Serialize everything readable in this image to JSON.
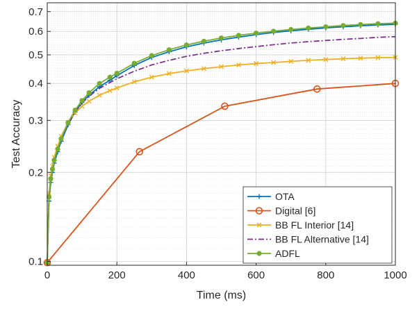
{
  "chart_data": {
    "type": "line",
    "xlabel": "Time (ms)",
    "ylabel": "Test Accuracy",
    "yscale": "log",
    "xlim": [
      0,
      1000
    ],
    "ylim": [
      0.097,
      0.75
    ],
    "xticks": [
      0,
      200,
      400,
      600,
      800,
      1000
    ],
    "yticks": [
      0.1,
      0.2,
      0.3,
      0.4,
      0.5,
      0.6,
      0.7
    ],
    "ytick_labels": [
      "0.1",
      "0.2",
      "0.3",
      "0.4",
      "0.5",
      "0.6",
      "0.7"
    ],
    "grid": true,
    "minor_grid": true,
    "legend_position": "bottom-right",
    "series": [
      {
        "name": "OTA",
        "color": "#0072BD",
        "dash": "solid",
        "marker": "plus",
        "x": [
          0,
          5,
          10,
          15,
          20,
          30,
          40,
          60,
          80,
          100,
          120,
          150,
          180,
          200,
          250,
          300,
          350,
          400,
          450,
          500,
          550,
          600,
          650,
          700,
          750,
          800,
          850,
          900,
          950,
          1000
        ],
        "y": [
          0.099,
          0.16,
          0.185,
          0.2,
          0.215,
          0.235,
          0.255,
          0.29,
          0.32,
          0.345,
          0.365,
          0.39,
          0.41,
          0.425,
          0.46,
          0.49,
          0.512,
          0.532,
          0.548,
          0.562,
          0.574,
          0.585,
          0.595,
          0.603,
          0.61,
          0.617,
          0.622,
          0.627,
          0.631,
          0.634
        ]
      },
      {
        "name": "Digital [6]",
        "color": "#D95319",
        "dash": "solid",
        "marker": "circle",
        "x": [
          0,
          265,
          510,
          775,
          1000
        ],
        "y": [
          0.099,
          0.235,
          0.335,
          0.383,
          0.4
        ]
      },
      {
        "name": "BB FL Interior [14]",
        "color": "#EDB120",
        "dash": "solid",
        "marker": "cross",
        "x": [
          0,
          5,
          10,
          15,
          20,
          30,
          40,
          60,
          80,
          100,
          120,
          150,
          180,
          200,
          250,
          300,
          350,
          400,
          450,
          500,
          550,
          600,
          650,
          700,
          750,
          800,
          850,
          900,
          950,
          1000
        ],
        "y": [
          0.099,
          0.17,
          0.195,
          0.21,
          0.225,
          0.245,
          0.265,
          0.295,
          0.318,
          0.335,
          0.348,
          0.365,
          0.378,
          0.386,
          0.405,
          0.42,
          0.432,
          0.441,
          0.449,
          0.456,
          0.462,
          0.467,
          0.471,
          0.475,
          0.479,
          0.482,
          0.485,
          0.487,
          0.489,
          0.49
        ]
      },
      {
        "name": "BB FL Alternative [14]",
        "color": "#7E2F8E",
        "dash": "dashdot",
        "marker": "none",
        "x": [
          0,
          5,
          10,
          15,
          20,
          30,
          40,
          60,
          80,
          100,
          120,
          150,
          180,
          200,
          250,
          300,
          350,
          400,
          450,
          500,
          550,
          600,
          650,
          700,
          750,
          800,
          850,
          900,
          950,
          1000
        ],
        "y": [
          0.099,
          0.165,
          0.19,
          0.205,
          0.22,
          0.24,
          0.26,
          0.292,
          0.32,
          0.343,
          0.362,
          0.385,
          0.403,
          0.415,
          0.44,
          0.462,
          0.479,
          0.494,
          0.506,
          0.516,
          0.525,
          0.533,
          0.541,
          0.548,
          0.554,
          0.559,
          0.564,
          0.568,
          0.573,
          0.576
        ]
      },
      {
        "name": "ADFL",
        "color": "#77AC30",
        "dash": "solid",
        "marker": "dot",
        "x": [
          0,
          5,
          10,
          15,
          20,
          30,
          40,
          60,
          80,
          100,
          120,
          150,
          180,
          200,
          250,
          300,
          350,
          400,
          450,
          500,
          550,
          600,
          650,
          700,
          750,
          800,
          850,
          900,
          950,
          1000
        ],
        "y": [
          0.099,
          0.165,
          0.19,
          0.205,
          0.22,
          0.24,
          0.26,
          0.295,
          0.325,
          0.35,
          0.372,
          0.4,
          0.42,
          0.433,
          0.468,
          0.497,
          0.52,
          0.54,
          0.556,
          0.57,
          0.582,
          0.592,
          0.601,
          0.609,
          0.616,
          0.622,
          0.628,
          0.633,
          0.637,
          0.64
        ]
      }
    ]
  }
}
